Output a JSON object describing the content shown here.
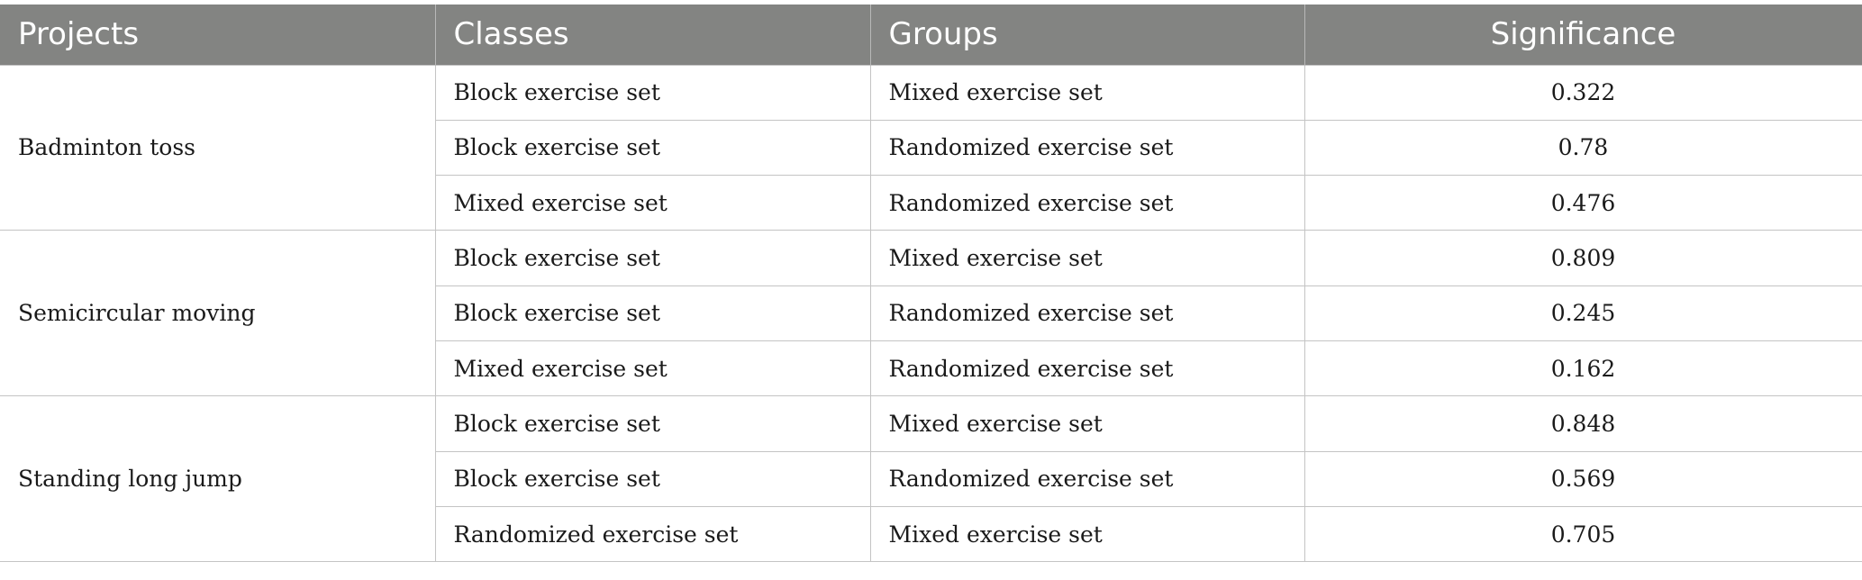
{
  "table": {
    "headers": [
      "Projects",
      "Classes",
      "Groups",
      "Significance"
    ],
    "projects": [
      {
        "name": "Badminton toss",
        "rows": [
          {
            "class": "Block exercise set",
            "group": "Mixed exercise set",
            "significance": "0.322"
          },
          {
            "class": "Block exercise set",
            "group": "Randomized exercise set",
            "significance": "0.78"
          },
          {
            "class": "Mixed exercise set",
            "group": "Randomized exercise set",
            "significance": "0.476"
          }
        ]
      },
      {
        "name": "Semicircular moving",
        "rows": [
          {
            "class": "Block exercise set",
            "group": "Mixed exercise set",
            "significance": "0.809"
          },
          {
            "class": "Block exercise set",
            "group": "Randomized exercise set",
            "significance": "0.245"
          },
          {
            "class": "Mixed exercise set",
            "group": "Randomized exercise set",
            "significance": "0.162"
          }
        ]
      },
      {
        "name": "Standing long jump",
        "rows": [
          {
            "class": "Block exercise set",
            "group": "Mixed exercise set",
            "significance": "0.848"
          },
          {
            "class": "Block exercise set",
            "group": "Randomized exercise set",
            "significance": "0.569"
          },
          {
            "class": "Randomized exercise set",
            "group": "Mixed exercise set",
            "significance": "0.705"
          }
        ]
      }
    ]
  }
}
